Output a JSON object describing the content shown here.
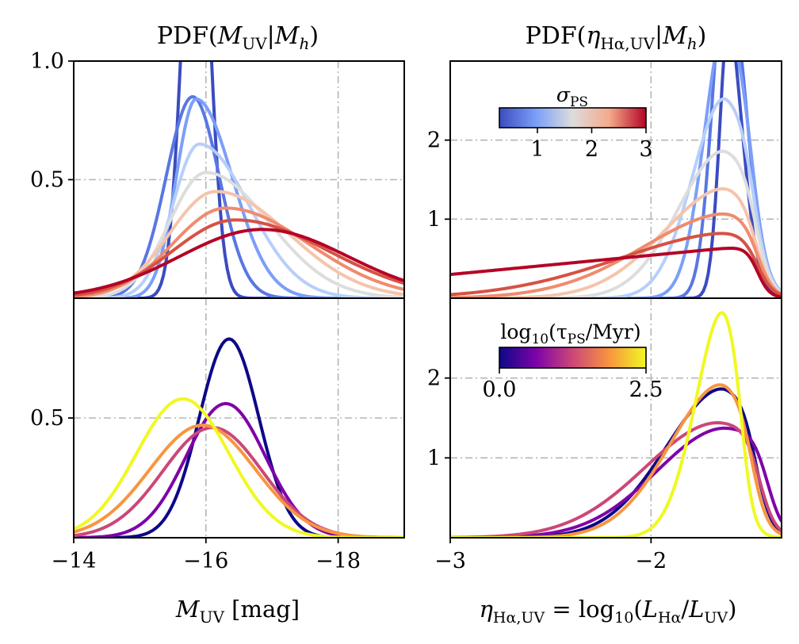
{
  "chart_data": [
    {
      "id": "top-left",
      "type": "line",
      "title": "PDF(M_UV|M_h)",
      "xlabel": "",
      "ylabel": "",
      "xlim": [
        -14,
        -19
      ],
      "ylim": [
        0,
        1.0
      ],
      "y_ticks": [
        {
          "v": 0.5,
          "label": "0.5"
        },
        {
          "v": 1.0,
          "label": "1.0"
        }
      ],
      "grid_x": [
        -16,
        -18
      ],
      "grid_y": [
        0.5
      ],
      "legend_colorbar": "sigma_PS (1 to 3)",
      "series": [
        {
          "name": "sigma_PS=0.3",
          "color": "#3b4cc0",
          "kind": "gauss",
          "mu": -15.85,
          "sigma": 0.2,
          "amp": 2.0
        },
        {
          "name": "sigma_PS=0.8",
          "color": "#5977e3",
          "kind": "gauss",
          "mu": -15.8,
          "sigma": 0.4,
          "amp": 0.85
        },
        {
          "name": "sigma_PS=1.2",
          "color": "#7b9ff9",
          "kind": "skew",
          "mu": -15.85,
          "sl": 0.3,
          "sr": 0.55,
          "amp": 0.84
        },
        {
          "name": "sigma_PS=1.6",
          "color": "#b7cff9",
          "kind": "skew",
          "mu": -15.9,
          "sl": 0.4,
          "sr": 0.75,
          "amp": 0.65
        },
        {
          "name": "sigma_PS=2.0",
          "color": "#dddddd",
          "kind": "skew",
          "mu": -16.0,
          "sl": 0.55,
          "sr": 0.95,
          "amp": 0.53
        },
        {
          "name": "sigma_PS=2.3",
          "color": "#f5c4ac",
          "kind": "skew",
          "mu": -16.15,
          "sl": 0.7,
          "sr": 1.1,
          "amp": 0.45
        },
        {
          "name": "sigma_PS=2.6",
          "color": "#f08b6e",
          "kind": "skew",
          "mu": -16.3,
          "sl": 0.8,
          "sr": 1.25,
          "amp": 0.38
        },
        {
          "name": "sigma_PS=2.8",
          "color": "#d65244",
          "kind": "skew",
          "mu": -16.45,
          "sl": 0.95,
          "sr": 1.4,
          "amp": 0.33
        },
        {
          "name": "sigma_PS=3.0",
          "color": "#b40426",
          "kind": "skew",
          "mu": -16.85,
          "sl": 1.25,
          "sr": 1.3,
          "amp": 0.29
        }
      ]
    },
    {
      "id": "top-right",
      "type": "line",
      "title": "PDF(eta_Ha,UV|M_h)",
      "xlabel": "",
      "ylabel": "",
      "xlim": [
        -3.0,
        -1.35
      ],
      "ylim": [
        0,
        3.0
      ],
      "y_ticks": [
        {
          "v": 1,
          "label": "1"
        },
        {
          "v": 2,
          "label": "2"
        }
      ],
      "grid_x": [
        -2
      ],
      "grid_y": [
        1,
        2
      ],
      "series": [
        {
          "name": "sigma_PS=0.3",
          "color": "#3b4cc0",
          "kind": "edge",
          "mu": -1.6,
          "sl": 0.05,
          "amp": 4.5,
          "cut": -1.55,
          "w": 0.04
        },
        {
          "name": "sigma_PS=0.8",
          "color": "#5977e3",
          "kind": "edge",
          "mu": -1.62,
          "sl": 0.07,
          "amp": 4.5,
          "cut": -1.52,
          "w": 0.04
        },
        {
          "name": "sigma_PS=1.2",
          "color": "#7b9ff9",
          "kind": "edge",
          "mu": -1.62,
          "sl": 0.11,
          "amp": 3.6,
          "cut": -1.5,
          "w": 0.04
        },
        {
          "name": "sigma_PS=1.6",
          "color": "#b7cff9",
          "kind": "edge",
          "mu": -1.62,
          "sl": 0.17,
          "amp": 2.6,
          "cut": -1.49,
          "w": 0.04
        },
        {
          "name": "sigma_PS=2.0",
          "color": "#dddddd",
          "kind": "edge",
          "mu": -1.62,
          "sl": 0.24,
          "amp": 1.9,
          "cut": -1.48,
          "w": 0.04
        },
        {
          "name": "sigma_PS=2.3",
          "color": "#f5c4ac",
          "kind": "edge",
          "mu": -1.6,
          "sl": 0.33,
          "amp": 1.42,
          "cut": -1.48,
          "w": 0.04
        },
        {
          "name": "sigma_PS=2.6",
          "color": "#f08b6e",
          "kind": "edge",
          "mu": -1.58,
          "sl": 0.45,
          "amp": 1.09,
          "cut": -1.47,
          "w": 0.04
        },
        {
          "name": "sigma_PS=2.8",
          "color": "#d65244",
          "kind": "edge",
          "mu": -1.55,
          "sl": 0.6,
          "amp": 0.84,
          "cut": -1.47,
          "w": 0.04
        },
        {
          "name": "sigma_PS=3.0",
          "color": "#b40426",
          "kind": "lin",
          "x0": -3.0,
          "y0": 0.3,
          "x1": -1.52,
          "y1": 0.66,
          "cut": -1.47,
          "w": 0.03
        }
      ]
    },
    {
      "id": "bottom-left",
      "type": "line",
      "title": "",
      "xlabel": "M_UV [mag]",
      "ylabel": "",
      "xlim": [
        -14,
        -19
      ],
      "ylim": [
        0,
        1.0
      ],
      "x_ticks": [
        {
          "v": -14,
          "label": "−14"
        },
        {
          "v": -16,
          "label": "−16"
        },
        {
          "v": -18,
          "label": "−18"
        }
      ],
      "y_ticks": [
        {
          "v": 0.5,
          "label": "0.5"
        }
      ],
      "grid_x": [
        -16,
        -18
      ],
      "grid_y": [
        0.5
      ],
      "series": [
        {
          "name": "log10 tau_PS=0.0",
          "color": "#0d0887",
          "kind": "gauss",
          "mu": -16.35,
          "sigma": 0.45,
          "amp": 0.83
        },
        {
          "name": "log10 tau_PS=0.6",
          "color": "#7e03a8",
          "kind": "gauss",
          "mu": -16.3,
          "sigma": 0.6,
          "amp": 0.56
        },
        {
          "name": "log10 tau_PS=1.2",
          "color": "#cc4778",
          "kind": "gauss",
          "mu": -16.1,
          "sigma": 0.75,
          "amp": 0.46
        },
        {
          "name": "log10 tau_PS=1.9",
          "color": "#f89540",
          "kind": "gauss",
          "mu": -15.95,
          "sigma": 0.8,
          "amp": 0.47
        },
        {
          "name": "log10 tau_PS=2.5",
          "color": "#f0f921",
          "kind": "gauss",
          "mu": -15.65,
          "sigma": 0.7,
          "amp": 0.58
        }
      ]
    },
    {
      "id": "bottom-right",
      "type": "line",
      "title": "",
      "xlabel": "eta_Ha,UV = log10(L_Ha/L_UV)",
      "ylabel": "",
      "xlim": [
        -3.0,
        -1.35
      ],
      "ylim": [
        0,
        3.0
      ],
      "x_ticks": [
        {
          "v": -3,
          "label": "−3"
        },
        {
          "v": -2,
          "label": "−2"
        }
      ],
      "y_ticks": [
        {
          "v": 1,
          "label": "1"
        },
        {
          "v": 2,
          "label": "2"
        }
      ],
      "grid_x": [
        -2
      ],
      "grid_y": [
        1,
        2
      ],
      "series": [
        {
          "name": "log10 tau_PS=0.0",
          "color": "#0d0887",
          "kind": "edge",
          "mu": -1.62,
          "sl": 0.3,
          "amp": 1.9,
          "cut": -1.48,
          "w": 0.04
        },
        {
          "name": "log10 tau_PS=0.6",
          "color": "#7e03a8",
          "kind": "edge",
          "mu": -1.62,
          "sl": 0.35,
          "amp": 1.38,
          "cut": -1.42,
          "w": 0.04
        },
        {
          "name": "log10 tau_PS=1.2",
          "color": "#cc4778",
          "kind": "edge",
          "mu": -1.65,
          "sl": 0.38,
          "amp": 1.45,
          "cut": -1.46,
          "w": 0.04
        },
        {
          "name": "log10 tau_PS=1.9",
          "color": "#f89540",
          "kind": "edge",
          "mu": -1.62,
          "sl": 0.28,
          "amp": 1.97,
          "cut": -1.5,
          "w": 0.04
        },
        {
          "name": "log10 tau_PS=2.5",
          "color": "#f0f921",
          "kind": "edge",
          "mu": -1.62,
          "sl": 0.15,
          "amp": 2.98,
          "cut": -1.55,
          "w": 0.03
        }
      ]
    }
  ],
  "colorbars": {
    "sigma": {
      "title": "σPS",
      "title_var": "σ",
      "title_sub": "PS",
      "range": [
        0.3,
        3.0
      ],
      "ticks": [
        {
          "v": 1,
          "label": "1"
        },
        {
          "v": 2,
          "label": "2"
        },
        {
          "v": 3,
          "label": "3"
        }
      ],
      "stops": [
        "#3b4cc0",
        "#7b9ff9",
        "#dddddd",
        "#f5a98a",
        "#b40426"
      ]
    },
    "tau": {
      "title_pre": "log",
      "title_sub1": "10",
      "title_mid": "(τ",
      "title_sub2": "PS",
      "title_post": "/Myr)",
      "range": [
        0.0,
        2.5
      ],
      "ticks": [
        {
          "v": 0.0,
          "label": "0.0"
        },
        {
          "v": 2.5,
          "label": "2.5"
        }
      ],
      "stops": [
        "#0d0887",
        "#7e03a8",
        "#cc4778",
        "#f89540",
        "#f0f921"
      ]
    }
  },
  "titles": {
    "left": {
      "pre": "PDF(",
      "var": "M",
      "sub": "UV",
      "mid": "|",
      "var2": "M",
      "sub2": "h",
      "post": ")"
    },
    "right": {
      "pre": "PDF(",
      "var": "η",
      "sub": "Hα,UV",
      "mid": "|",
      "var2": "M",
      "sub2": "h",
      "post": ")"
    }
  },
  "xlabels": {
    "left": {
      "var": "M",
      "sub": "UV",
      "post": " [mag]"
    },
    "right": {
      "var": "η",
      "sub": "Hα,UV",
      "mid": " = log",
      "sub2": "10",
      "post1": "(",
      "var2": "L",
      "sub3": "Hα",
      "slash": "/",
      "var3": "L",
      "sub4": "UV",
      "post": ")"
    }
  }
}
